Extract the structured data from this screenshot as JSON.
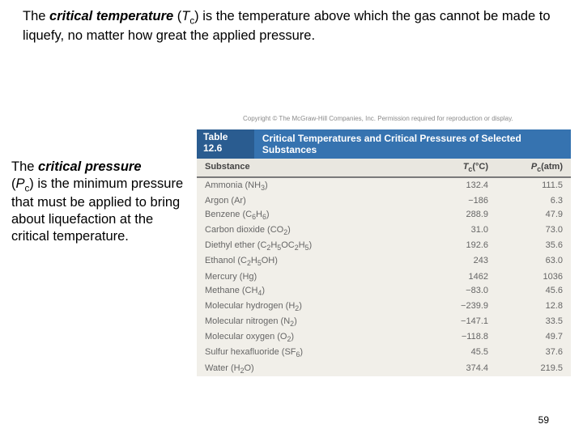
{
  "top": {
    "pre": "The ",
    "term": "critical temperature",
    "symbol_open": " (",
    "symbol_var": "T",
    "symbol_sub": "c",
    "symbol_close": ") ",
    "rest": "is the temperature above which the gas cannot be made to liquefy, no matter how great the applied pressure."
  },
  "side": {
    "pre": "The ",
    "term": "critical pressure",
    "line2_open": "(",
    "symbol_var": "P",
    "symbol_sub": "c",
    "line2_close": ") is the minimum",
    "rest": "pressure that must be applied to bring about liquefaction at the critical temperature."
  },
  "copyright": "Copyright © The McGraw-Hill Companies, Inc. Permission required for reproduction or display.",
  "table": {
    "num": "Table 12.6",
    "title": "Critical Temperatures and Critical Pressures of Selected Substances",
    "head": {
      "c1": "Substance",
      "c2_var": "T",
      "c2_sub": "c",
      "c2_unit": "(°C)",
      "c3_var": "P",
      "c3_sub": "c",
      "c3_unit": "(atm)"
    },
    "rows": [
      {
        "name": "Ammonia (NH",
        "sub": "3",
        "close": ")",
        "tc": "132.4",
        "pc": "111.5"
      },
      {
        "name": "Argon (Ar)",
        "sub": "",
        "close": "",
        "tc": "−186",
        "pc": "6.3"
      },
      {
        "name": "Benzene (C",
        "sub": "6",
        "mid": "H",
        "sub2": "6",
        "close": ")",
        "tc": "288.9",
        "pc": "47.9"
      },
      {
        "name": "Carbon dioxide (CO",
        "sub": "2",
        "close": ")",
        "tc": "31.0",
        "pc": "73.0"
      },
      {
        "name": "Diethyl ether (C",
        "sub": "2",
        "mid": "H",
        "sub2": "5",
        "mid2": "OC",
        "sub3": "2",
        "mid3": "H",
        "sub4": "5",
        "close": ")",
        "tc": "192.6",
        "pc": "35.6"
      },
      {
        "name": "Ethanol (C",
        "sub": "2",
        "mid": "H",
        "sub2": "5",
        "mid2": "OH)",
        "close": "",
        "tc": "243",
        "pc": "63.0"
      },
      {
        "name": "Mercury (Hg)",
        "sub": "",
        "close": "",
        "tc": "1462",
        "pc": "1036"
      },
      {
        "name": "Methane (CH",
        "sub": "4",
        "close": ")",
        "tc": "−83.0",
        "pc": "45.6"
      },
      {
        "name": "Molecular hydrogen (H",
        "sub": "2",
        "close": ")",
        "tc": "−239.9",
        "pc": "12.8"
      },
      {
        "name": "Molecular nitrogen (N",
        "sub": "2",
        "close": ")",
        "tc": "−147.1",
        "pc": "33.5"
      },
      {
        "name": "Molecular oxygen (O",
        "sub": "2",
        "close": ")",
        "tc": "−118.8",
        "pc": "49.7"
      },
      {
        "name": "Sulfur hexafluoride (SF",
        "sub": "6",
        "close": ")",
        "tc": "45.5",
        "pc": "37.6"
      },
      {
        "name": "Water (H",
        "sub": "2",
        "mid": "O)",
        "close": "",
        "tc": "374.4",
        "pc": "219.5"
      }
    ]
  },
  "pagenum": "59",
  "colors": {
    "table_header_bg": "#3673b0",
    "table_bg": "#f1efe9",
    "text_muted": "#666666"
  }
}
